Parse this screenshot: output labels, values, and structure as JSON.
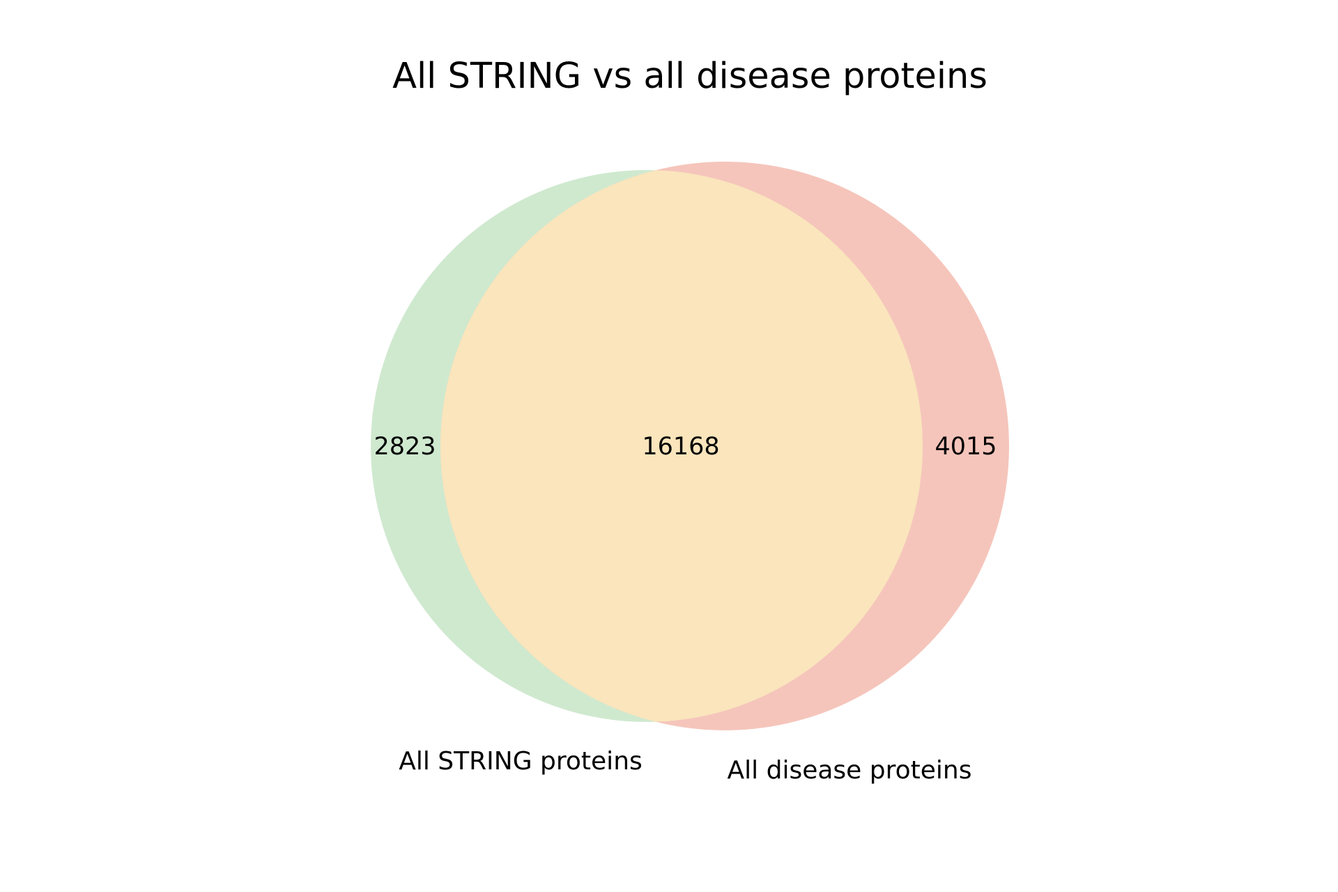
{
  "title": "All STRING vs all disease proteins",
  "sets": [
    {
      "label": "All STRING proteins",
      "only_count": "2823",
      "color": "#cfe9cf"
    },
    {
      "label": "All disease proteins",
      "only_count": "4015",
      "color": "#f5c5bb"
    }
  ],
  "intersection": {
    "count": "16168",
    "color": "#fae5bc"
  }
}
